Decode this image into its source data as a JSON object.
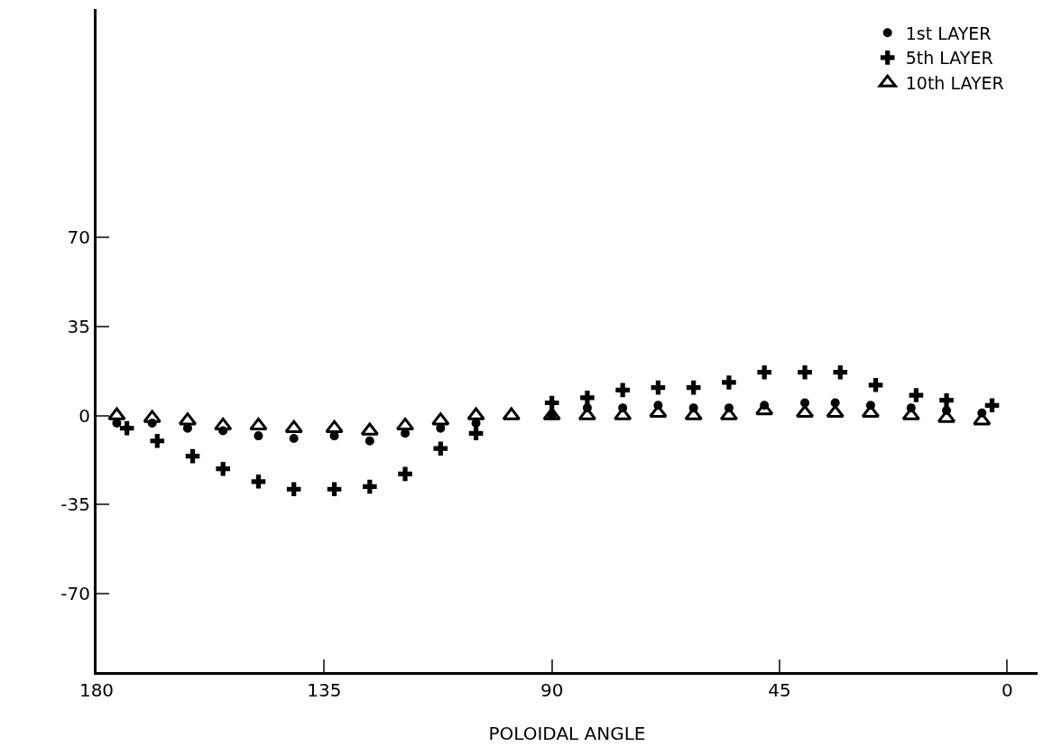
{
  "chart_data": {
    "type": "scatter",
    "xlabel": "POLOIDAL ANGLE",
    "xlim": [
      180,
      -6
    ],
    "xticks": [
      180,
      135,
      90,
      45,
      0
    ],
    "ylim": [
      -101,
      160
    ],
    "yticks": [
      -70,
      -35,
      0,
      35,
      70
    ],
    "grid": false,
    "legend": "top right",
    "series": [
      {
        "name": "1st LAYER",
        "color": "#000000",
        "marker": "circle",
        "x": [
          176,
          169,
          162,
          155,
          148,
          141,
          133,
          126,
          119,
          112,
          105,
          98,
          90,
          83,
          76,
          69,
          62,
          55,
          48,
          40,
          34,
          27,
          19,
          12,
          5
        ],
        "values": [
          -3,
          -3,
          -5,
          -6,
          -8,
          -9,
          -8,
          -10,
          -7,
          -5,
          -3,
          null,
          0,
          3,
          3,
          4,
          3,
          3,
          4,
          5,
          5,
          4,
          3,
          2,
          1
        ]
      },
      {
        "name": "5th LAYER",
        "color": "#000000",
        "marker": "cross",
        "x": [
          174,
          168,
          161,
          155,
          148,
          141,
          133,
          126,
          119,
          112,
          105,
          98,
          90,
          83,
          76,
          69,
          62,
          55,
          48,
          40,
          33,
          26,
          18,
          12,
          3
        ],
        "values": [
          -5,
          -10,
          -16,
          -21,
          -26,
          -29,
          -29,
          -28,
          -23,
          -13,
          -7,
          null,
          5,
          7,
          10,
          11,
          11,
          13,
          17,
          17,
          17,
          12,
          8,
          6,
          4
        ]
      },
      {
        "name": "10th LAYER",
        "color": "#000000",
        "marker": "triangle",
        "x": [
          176,
          169,
          162,
          155,
          148,
          141,
          133,
          126,
          119,
          112,
          105,
          98,
          90,
          83,
          76,
          69,
          62,
          55,
          48,
          40,
          34,
          27,
          19,
          12,
          5
        ],
        "values": [
          0,
          -1,
          -2,
          -4,
          -4,
          -5,
          -5,
          -6,
          -4,
          -2,
          0,
          0,
          0,
          0,
          0,
          1,
          0,
          0,
          2,
          1,
          1,
          1,
          0,
          -1,
          -2
        ]
      }
    ]
  }
}
